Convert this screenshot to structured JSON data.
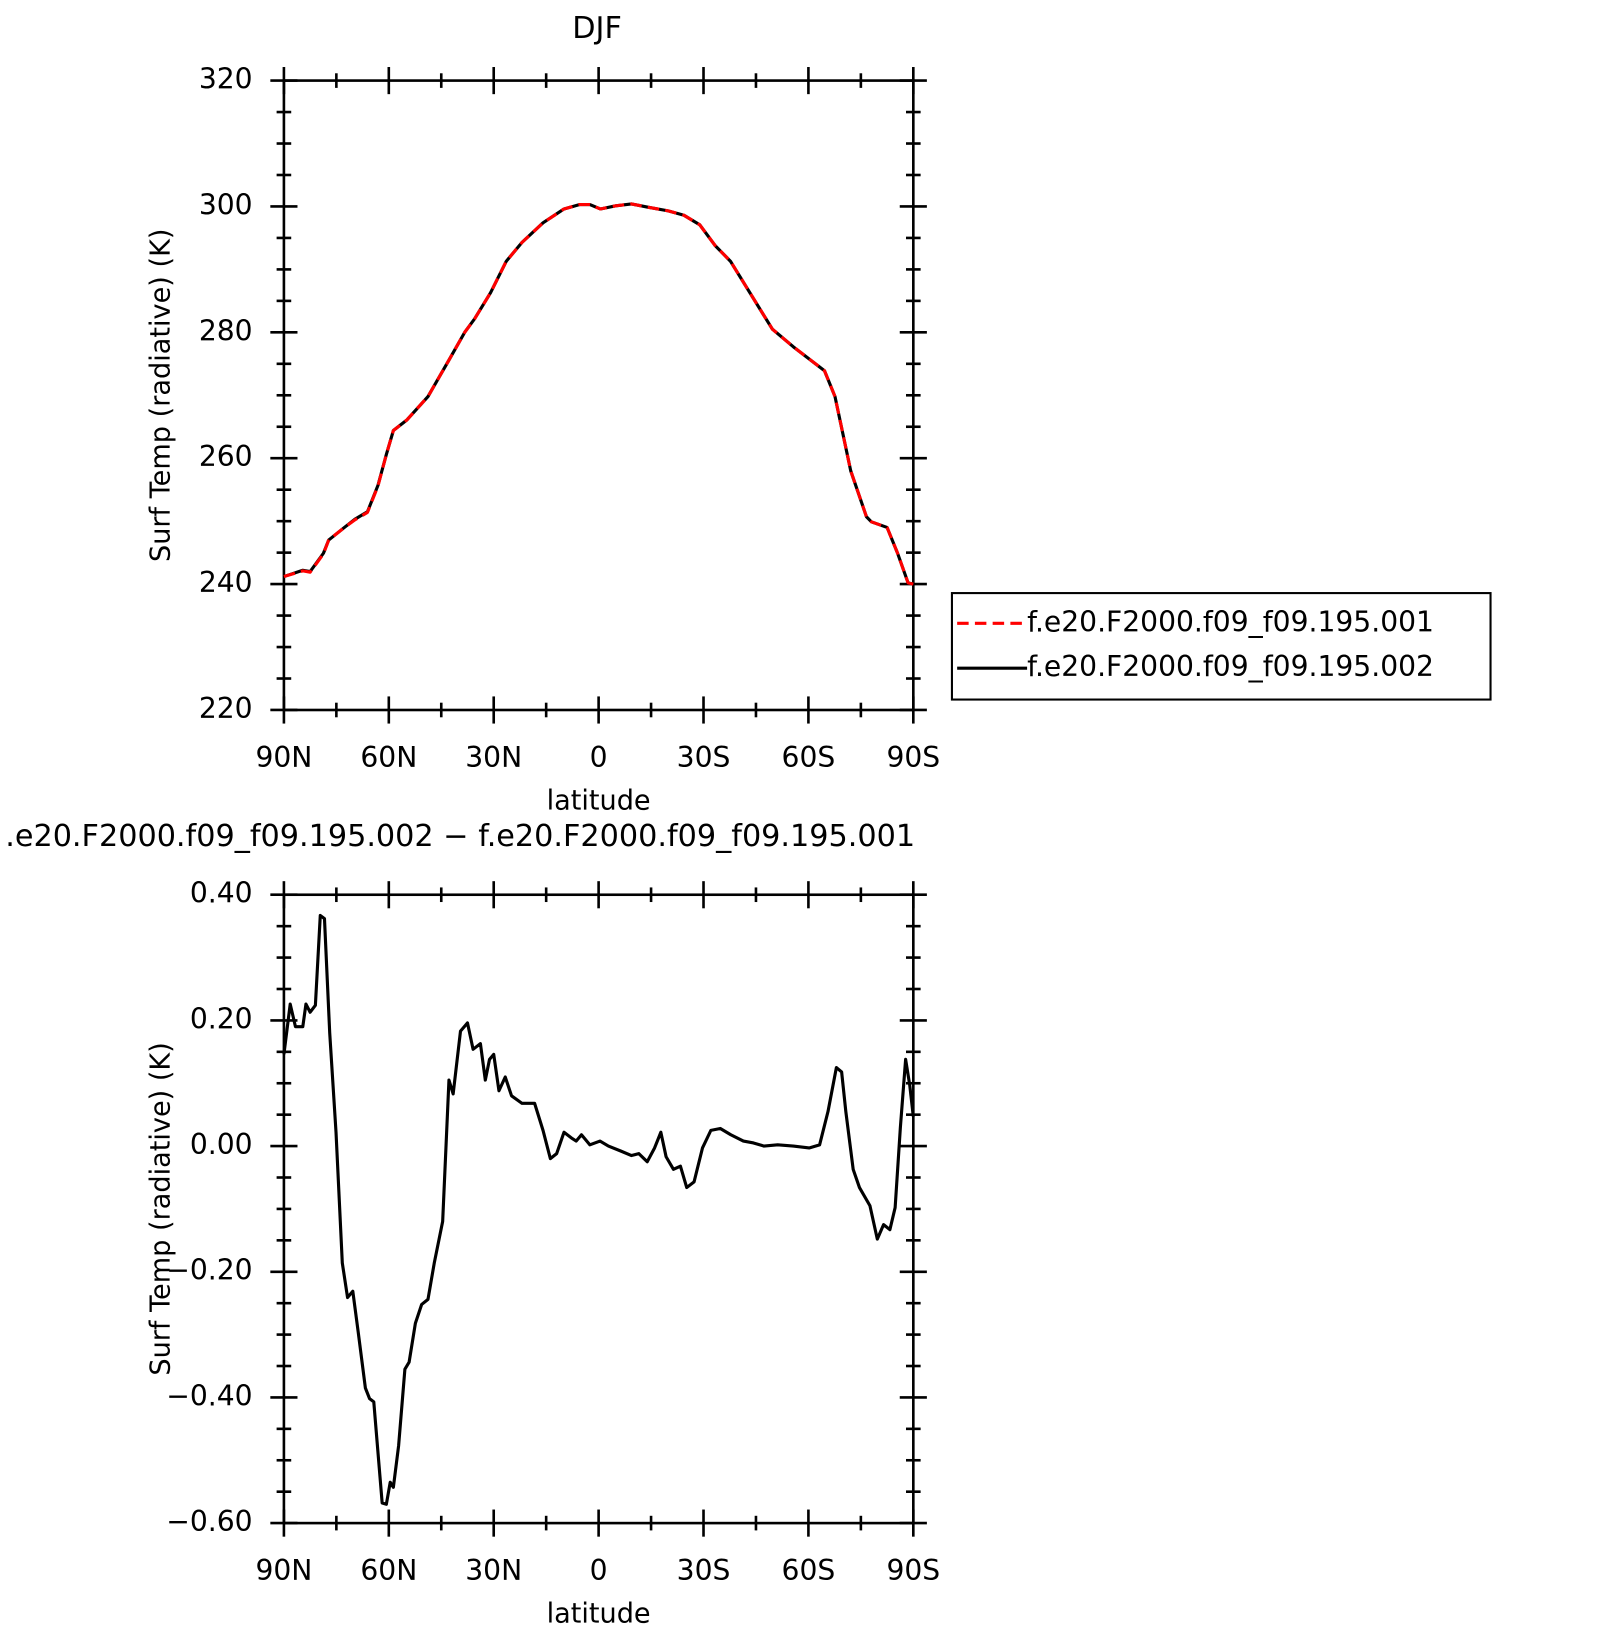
{
  "chart_data": [
    {
      "type": "line",
      "title": "DJF",
      "x_label": "latitude",
      "y_label": "Surf Temp (radiative) (K)",
      "x": [
        90,
        84.6,
        82.5,
        78.7,
        77.2,
        72.7,
        69.7,
        66.1,
        63.1,
        60.7,
        58.7,
        54.8,
        48.8,
        42.8,
        38.3,
        35.4,
        30.9,
        26.4,
        21.9,
        15.9,
        9.9,
        5.5,
        2.5,
        -0.5,
        -4.9,
        -9.4,
        -13.9,
        -19.9,
        -24.4,
        -28.9,
        -33.3,
        -37.7,
        -49.7,
        -55.7,
        -64.6,
        -67.6,
        -72.1,
        -76.6,
        -78,
        -82.5,
        -85.5,
        -88.5,
        -90
      ],
      "series": [
        {
          "name": "f.e20.F2000.f09_f09.195.001",
          "color": "#ff0000",
          "dashed": true,
          "values": [
            241.2,
            242.1,
            241.9,
            244.8,
            247,
            249,
            250.2,
            251.4,
            255.6,
            260.6,
            264.4,
            266.1,
            269.8,
            275.6,
            280,
            282.2,
            286.3,
            291.3,
            294.3,
            297.4,
            299.6,
            300.3,
            300.3,
            299.6,
            300.1,
            300.4,
            299.9,
            299.3,
            298.6,
            297.1,
            293.8,
            291.3,
            280.5,
            277.7,
            273.9,
            269.8,
            258,
            250.7,
            249.9,
            249,
            244.9,
            240.2,
            240
          ]
        },
        {
          "name": "f.e20.F2000.f09_f09.195.002",
          "color": "#000000",
          "dashed": false,
          "values": [
            241.2,
            242.2,
            242,
            244.9,
            247,
            249,
            250.3,
            251.5,
            255.7,
            260.6,
            264.4,
            266.1,
            269.8,
            275.6,
            280,
            282.2,
            286.3,
            291.3,
            294.3,
            297.4,
            299.6,
            300.3,
            300.3,
            299.6,
            300.1,
            300.4,
            299.9,
            299.3,
            298.6,
            297.1,
            293.8,
            291.3,
            280.5,
            277.7,
            273.9,
            269.8,
            258,
            250.7,
            249.9,
            249,
            244.9,
            240.2,
            240
          ]
        }
      ],
      "xlim": [
        90,
        -90
      ],
      "xticks": [
        {
          "value": 90,
          "label": "90N"
        },
        {
          "value": 60,
          "label": "60N"
        },
        {
          "value": 30,
          "label": "30N"
        },
        0,
        {
          "value": -30,
          "label": "30S"
        },
        {
          "value": -60,
          "label": "60S"
        },
        {
          "value": -90,
          "label": "90S"
        }
      ],
      "x_minor_ticks": [
        75,
        45,
        15,
        -15,
        -45,
        -75
      ],
      "ylim": [
        220,
        320
      ],
      "yticks": [
        220,
        240,
        260,
        280,
        300,
        320
      ],
      "y_minor_ticks": [
        225,
        230,
        235,
        245,
        250,
        255,
        265,
        270,
        275,
        285,
        290,
        295,
        305,
        310,
        315
      ],
      "legend": "outside-right"
    },
    {
      "type": "line",
      "title": ".e20.F2000.f09_f09.195.002 − f.e20.F2000.f09_f09.195.001",
      "x_label": "latitude",
      "y_label": "Surf Temp (radiative) (K)",
      "x": [
        90,
        88.2,
        86.7,
        84.6,
        83.7,
        82.5,
        81,
        79.6,
        78.4,
        76.9,
        75.1,
        73.3,
        71.8,
        70.3,
        68.8,
        66.7,
        65.5,
        64.3,
        61.9,
        60.7,
        59.6,
        58.7,
        57.2,
        55.4,
        54.2,
        52.4,
        50.6,
        48.8,
        47,
        44.6,
        42.8,
        41.6,
        39.5,
        37.5,
        35.9,
        33.8,
        32.4,
        31.2,
        30,
        28.5,
        26.7,
        24.9,
        21.9,
        18.3,
        15.9,
        13.8,
        12,
        9.9,
        7.8,
        6.4,
        4.9,
        2.5,
        -0.4,
        -2.8,
        -6.4,
        -9.4,
        -11.5,
        -13.9,
        -16,
        -17.8,
        -19.3,
        -21.4,
        -23.4,
        -25.2,
        -27.3,
        -29.7,
        -32.1,
        -34.8,
        -37.8,
        -41.4,
        -44.3,
        -47.3,
        -51.2,
        -55.7,
        -60.2,
        -63.2,
        -65.6,
        -68,
        -69.5,
        -70.7,
        -72.8,
        -74.6,
        -77.6,
        -79.7,
        -81.5,
        -83.3,
        -84.8,
        -86.3,
        -87.8,
        -89,
        -90
      ],
      "series": [
        {
          "color": "#000000",
          "dashed": false,
          "values": [
            0.146,
            0.226,
            0.19,
            0.19,
            0.226,
            0.213,
            0.224,
            0.367,
            0.362,
            0.18,
            0.022,
            -0.186,
            -0.241,
            -0.231,
            -0.294,
            -0.385,
            -0.402,
            -0.407,
            -0.568,
            -0.57,
            -0.535,
            -0.543,
            -0.477,
            -0.355,
            -0.344,
            -0.282,
            -0.252,
            -0.244,
            -0.186,
            -0.12,
            0.105,
            0.083,
            0.183,
            0.196,
            0.154,
            0.163,
            0.105,
            0.138,
            0.146,
            0.088,
            0.11,
            0.08,
            0.068,
            0.068,
            0.025,
            -0.02,
            -0.012,
            0.022,
            0.013,
            0.008,
            0.018,
            0.002,
            0.008,
            0,
            -0.008,
            -0.015,
            -0.012,
            -0.025,
            -0.003,
            0.022,
            -0.017,
            -0.037,
            -0.032,
            -0.066,
            -0.057,
            -0.003,
            0.025,
            0.028,
            0.018,
            0.008,
            0.005,
            0,
            0.002,
            0,
            -0.003,
            0.002,
            0.055,
            0.125,
            0.118,
            0.055,
            -0.037,
            -0.066,
            -0.095,
            -0.148,
            -0.125,
            -0.133,
            -0.098,
            0.03,
            0.138,
            0.096,
            0.047
          ]
        }
      ],
      "xlim": [
        90,
        -90
      ],
      "xticks": [
        {
          "value": 90,
          "label": "90N"
        },
        {
          "value": 60,
          "label": "60N"
        },
        {
          "value": 30,
          "label": "30N"
        },
        0,
        {
          "value": -30,
          "label": "30S"
        },
        {
          "value": -60,
          "label": "60S"
        },
        {
          "value": -90,
          "label": "90S"
        }
      ],
      "x_minor_ticks": [
        75,
        45,
        15,
        -15,
        -45,
        -75
      ],
      "ylim": [
        -0.6,
        0.4
      ],
      "yticks": [
        {
          "value": -0.6,
          "label": "−0.60"
        },
        {
          "value": -0.4,
          "label": "−0.40"
        },
        {
          "value": -0.2,
          "label": "−0.20"
        },
        {
          "value": 0,
          "label": "0.00"
        },
        {
          "value": 0.2,
          "label": "0.20"
        },
        {
          "value": 0.4,
          "label": "0.40"
        }
      ],
      "y_minor_ticks": [
        -0.55,
        -0.5,
        -0.45,
        -0.35,
        -0.3,
        -0.25,
        -0.15,
        -0.1,
        -0.05,
        0.05,
        0.1,
        0.15,
        0.25,
        0.3,
        0.35
      ]
    }
  ]
}
